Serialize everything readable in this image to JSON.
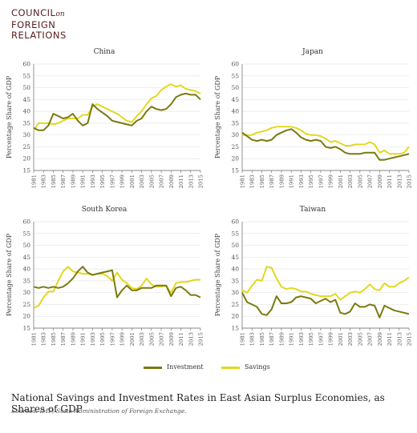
{
  "logo": {
    "line1": "COUNCIL",
    "on": "on",
    "line2": "FOREIGN",
    "line3": "RELATIONS"
  },
  "colors": {
    "investment": "#7a7a10",
    "savings": "#e3d820",
    "grid": "#e6e6e6",
    "axis": "#666666"
  },
  "legend": {
    "investment": "Investment",
    "savings": "Savings"
  },
  "caption": "National Savings and Investment Rates in East Asian Surplus Economies, as Shares of GDP",
  "source": "Sources: IMF; State Administration of Foreign Exchange.",
  "chart_data": [
    {
      "type": "line",
      "title": "China",
      "ylabel": "Percentage Share of GDP",
      "ylim": [
        15,
        60
      ],
      "yticks": [
        "15",
        "20",
        "25",
        "30",
        "35",
        "40",
        "45",
        "50",
        "55",
        "60"
      ],
      "xticks": [
        "1981",
        "1983",
        "1985",
        "1987",
        "1989",
        "1991",
        "1993",
        "1995",
        "1997",
        "1999",
        "2001",
        "2003",
        "2005",
        "2007",
        "2009",
        "2011",
        "2013",
        "2015"
      ],
      "x": [
        1981,
        1982,
        1983,
        1984,
        1985,
        1986,
        1987,
        1988,
        1989,
        1990,
        1991,
        1992,
        1993,
        1994,
        1995,
        1996,
        1997,
        1998,
        1999,
        2000,
        2001,
        2002,
        2003,
        2004,
        2005,
        2006,
        2007,
        2008,
        2009,
        2010,
        2011,
        2012,
        2013,
        2014,
        2015
      ],
      "series": [
        {
          "name": "Investment",
          "values": [
            33,
            32,
            32,
            34,
            39,
            38,
            37,
            37.5,
            39,
            36,
            34,
            35,
            43,
            41,
            39.5,
            38,
            36,
            35.5,
            35,
            34.5,
            34,
            36,
            37,
            40,
            42,
            41,
            40.5,
            41,
            43,
            46,
            47,
            47.5,
            47,
            47,
            45
          ]
        },
        {
          "name": "Savings",
          "values": [
            32,
            35,
            35,
            35,
            34.5,
            35,
            36,
            37,
            37,
            37,
            38.5,
            38.5,
            42,
            43,
            42,
            41,
            40,
            39,
            37.5,
            36,
            35.5,
            38,
            40,
            43,
            45.5,
            46.5,
            49,
            50.5,
            51.5,
            50.5,
            51,
            49.5,
            49,
            48.5,
            47.5
          ]
        }
      ]
    },
    {
      "type": "line",
      "title": "Japan",
      "ylabel": "Percentage Share of GDP",
      "ylim": [
        15,
        60
      ],
      "yticks": [
        "15",
        "20",
        "25",
        "30",
        "35",
        "40",
        "45",
        "50",
        "55",
        "60"
      ],
      "xticks": [
        "1981",
        "1983",
        "1985",
        "1987",
        "1989",
        "1991",
        "1993",
        "1995",
        "1997",
        "1999",
        "2001",
        "2003",
        "2005",
        "2007",
        "2009",
        "2011",
        "2013",
        "2015"
      ],
      "x": [
        1981,
        1982,
        1983,
        1984,
        1985,
        1986,
        1987,
        1988,
        1989,
        1990,
        1991,
        1992,
        1993,
        1994,
        1995,
        1996,
        1997,
        1998,
        1999,
        2000,
        2001,
        2002,
        2003,
        2004,
        2005,
        2006,
        2007,
        2008,
        2009,
        2010,
        2011,
        2012,
        2013,
        2014,
        2015
      ],
      "series": [
        {
          "name": "Investment",
          "values": [
            31,
            29.5,
            28,
            27.5,
            28,
            27.5,
            28,
            30,
            31,
            32,
            32.5,
            31,
            29,
            28,
            27.5,
            28,
            27.5,
            25,
            24.5,
            25,
            24,
            22.5,
            22,
            22,
            22,
            22.5,
            22.5,
            22.5,
            19.5,
            19.5,
            20,
            20.5,
            21,
            21.5,
            22
          ]
        },
        {
          "name": "Savings",
          "values": [
            30,
            30,
            30,
            31,
            31.5,
            32,
            33,
            33.5,
            33.5,
            33.5,
            33.5,
            33,
            32,
            30.5,
            30,
            30,
            29.5,
            28.5,
            27,
            27.5,
            26.5,
            25.5,
            25.5,
            26,
            26,
            26,
            27,
            26,
            22.5,
            23.5,
            22,
            22,
            22,
            22.5,
            25
          ]
        }
      ]
    },
    {
      "type": "line",
      "title": "South Korea",
      "ylabel": "Percentage Share of GDP",
      "ylim": [
        15,
        60
      ],
      "yticks": [
        "15",
        "20",
        "25",
        "30",
        "35",
        "40",
        "45",
        "50",
        "55",
        "60"
      ],
      "xticks": [
        "1981",
        "1983",
        "1985",
        "1987",
        "1989",
        "1991",
        "1993",
        "1995",
        "1997",
        "1999",
        "2001",
        "2003",
        "2005",
        "2007",
        "2009",
        "2011",
        "2013",
        "2015"
      ],
      "x": [
        1981,
        1982,
        1983,
        1984,
        1985,
        1986,
        1987,
        1988,
        1989,
        1990,
        1991,
        1992,
        1993,
        1994,
        1995,
        1996,
        1997,
        1998,
        1999,
        2000,
        2001,
        2002,
        2003,
        2004,
        2005,
        2006,
        2007,
        2008,
        2009,
        2010,
        2011,
        2012,
        2013,
        2014,
        2015
      ],
      "series": [
        {
          "name": "Investment",
          "values": [
            32.5,
            32,
            32.5,
            32,
            32.5,
            32,
            32.5,
            34,
            36,
            39,
            41,
            38.5,
            37.5,
            38,
            38.5,
            39,
            39.5,
            28,
            31,
            33,
            31,
            31,
            32,
            32,
            32,
            33,
            33,
            33,
            28.5,
            32,
            32.5,
            31,
            29,
            29,
            28
          ]
        },
        {
          "name": "Savings",
          "values": [
            23.5,
            24.5,
            28,
            30.5,
            30.5,
            35,
            39,
            41,
            39,
            38.5,
            38,
            38,
            37.5,
            38,
            38,
            37,
            35,
            38.5,
            35.5,
            34,
            32,
            31.5,
            33,
            36,
            33.5,
            32.5,
            32.5,
            33,
            30,
            34,
            34.5,
            34.5,
            35,
            35.5,
            35.5
          ]
        }
      ]
    },
    {
      "type": "line",
      "title": "Taiwan",
      "ylabel": "Percentage Share of GDP",
      "ylim": [
        15,
        60
      ],
      "yticks": [
        "15",
        "20",
        "25",
        "30",
        "35",
        "40",
        "45",
        "50",
        "55",
        "60"
      ],
      "xticks": [
        "1981",
        "1983",
        "1985",
        "1987",
        "1989",
        "1991",
        "1993",
        "1995",
        "1997",
        "1999",
        "2001",
        "2003",
        "2005",
        "2007",
        "2009",
        "2011",
        "2013",
        "2015"
      ],
      "x": [
        1981,
        1982,
        1983,
        1984,
        1985,
        1986,
        1987,
        1988,
        1989,
        1990,
        1991,
        1992,
        1993,
        1994,
        1995,
        1996,
        1997,
        1998,
        1999,
        2000,
        2001,
        2002,
        2003,
        2004,
        2005,
        2006,
        2007,
        2008,
        2009,
        2010,
        2011,
        2012,
        2013,
        2014,
        2015
      ],
      "series": [
        {
          "name": "Investment",
          "values": [
            30,
            26,
            25,
            24,
            21,
            20.5,
            23,
            28.5,
            25.5,
            25.5,
            26,
            28,
            28.5,
            28,
            27.5,
            25.5,
            26.5,
            27.5,
            26,
            27,
            21.5,
            21,
            22,
            25.5,
            24,
            24,
            25,
            24.5,
            19.5,
            24.5,
            23.5,
            22.5,
            22,
            21.5,
            21
          ]
        },
        {
          "name": "Savings",
          "values": [
            31,
            30,
            33,
            35.5,
            35,
            41,
            40.5,
            36,
            32.5,
            31.5,
            32,
            31.5,
            30.5,
            30.5,
            29.5,
            29,
            28.5,
            28.5,
            28.5,
            29.5,
            27,
            28.5,
            30,
            30.5,
            30,
            31.5,
            33.5,
            31.5,
            31,
            34,
            32.5,
            32.5,
            34,
            35,
            36.5
          ]
        }
      ]
    }
  ]
}
